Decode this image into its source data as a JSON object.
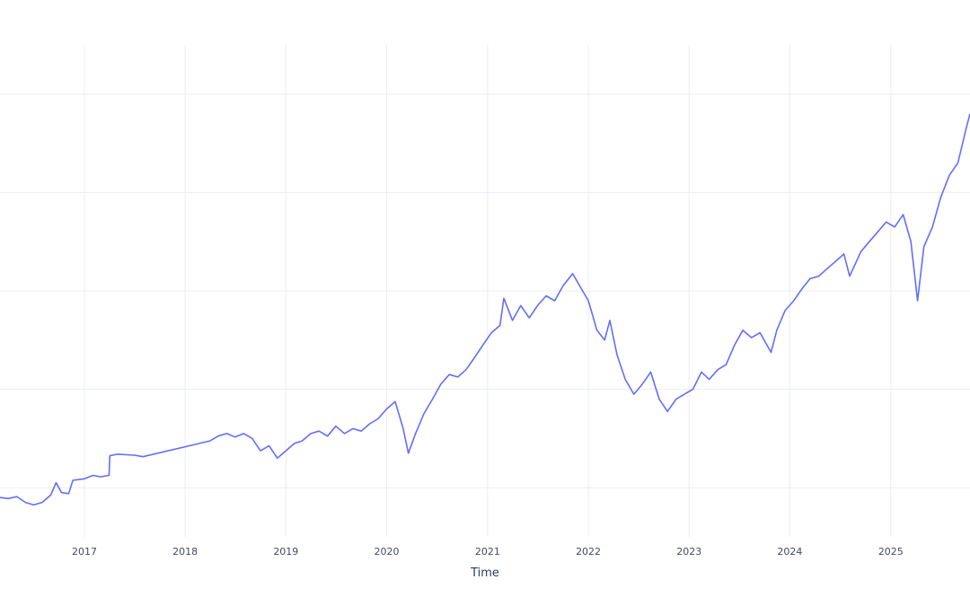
{
  "chart_data": {
    "type": "line",
    "title": "",
    "xlabel": "Time",
    "ylabel": "",
    "xlim": [
      "2016-03-01",
      "2025-10-15"
    ],
    "ylim": [
      0,
      100
    ],
    "x_ticks": [
      "2017",
      "2018",
      "2019",
      "2020",
      "2021",
      "2022",
      "2023",
      "2024",
      "2025"
    ],
    "y_grid_values": [
      10,
      30,
      50,
      70,
      90
    ],
    "grid": true,
    "legend": "none",
    "line_color": "#636efa",
    "series": [
      {
        "points": [
          [
            "2016-03-01",
            8.0
          ],
          [
            "2016-04-01",
            7.8
          ],
          [
            "2016-05-01",
            8.2
          ],
          [
            "2016-06-01",
            7.0
          ],
          [
            "2016-07-01",
            6.5
          ],
          [
            "2016-08-01",
            7.0
          ],
          [
            "2016-09-01",
            8.5
          ],
          [
            "2016-09-20",
            11.0
          ],
          [
            "2016-10-10",
            9.0
          ],
          [
            "2016-11-05",
            8.8
          ],
          [
            "2016-11-20",
            11.5
          ],
          [
            "2017-01-01",
            11.8
          ],
          [
            "2017-02-01",
            12.5
          ],
          [
            "2017-03-01",
            12.2
          ],
          [
            "2017-03-31",
            12.5
          ],
          [
            "2017-04-03",
            16.5
          ],
          [
            "2017-05-01",
            16.8
          ],
          [
            "2017-06-01",
            16.7
          ],
          [
            "2017-07-01",
            16.6
          ],
          [
            "2017-08-01",
            16.3
          ],
          [
            "2018-04-01",
            19.5
          ],
          [
            "2018-05-01",
            20.5
          ],
          [
            "2018-06-01",
            21.0
          ],
          [
            "2018-07-01",
            20.3
          ],
          [
            "2018-08-01",
            21.0
          ],
          [
            "2018-09-01",
            20.0
          ],
          [
            "2018-10-01",
            17.5
          ],
          [
            "2018-11-01",
            18.5
          ],
          [
            "2018-12-01",
            16.0
          ],
          [
            "2019-01-01",
            17.5
          ],
          [
            "2019-02-01",
            19.0
          ],
          [
            "2019-03-01",
            19.5
          ],
          [
            "2019-04-01",
            21.0
          ],
          [
            "2019-05-01",
            21.5
          ],
          [
            "2019-06-01",
            20.5
          ],
          [
            "2019-07-01",
            22.5
          ],
          [
            "2019-08-01",
            21.0
          ],
          [
            "2019-09-01",
            22.0
          ],
          [
            "2019-10-01",
            21.5
          ],
          [
            "2019-11-01",
            23.0
          ],
          [
            "2019-12-01",
            24.0
          ],
          [
            "2020-01-01",
            26.0
          ],
          [
            "2020-02-01",
            27.5
          ],
          [
            "2020-03-01",
            22.0
          ],
          [
            "2020-03-20",
            17.0
          ],
          [
            "2020-04-15",
            21.0
          ],
          [
            "2020-05-15",
            25.0
          ],
          [
            "2020-06-15",
            28.0
          ],
          [
            "2020-07-15",
            31.0
          ],
          [
            "2020-08-15",
            33.0
          ],
          [
            "2020-09-15",
            32.5
          ],
          [
            "2020-10-15",
            34.0
          ],
          [
            "2020-11-15",
            36.5
          ],
          [
            "2020-12-15",
            39.0
          ],
          [
            "2021-01-15",
            41.5
          ],
          [
            "2021-02-15",
            43.0
          ],
          [
            "2021-03-01",
            48.5
          ],
          [
            "2021-04-01",
            44.0
          ],
          [
            "2021-05-01",
            47.0
          ],
          [
            "2021-06-01",
            44.5
          ],
          [
            "2021-07-01",
            47.0
          ],
          [
            "2021-08-01",
            49.0
          ],
          [
            "2021-09-01",
            48.0
          ],
          [
            "2021-10-01",
            51.0
          ],
          [
            "2021-11-05",
            53.5
          ],
          [
            "2021-12-01",
            51.0
          ],
          [
            "2022-01-01",
            48.0
          ],
          [
            "2022-02-01",
            42.0
          ],
          [
            "2022-03-01",
            40.0
          ],
          [
            "2022-03-20",
            44.0
          ],
          [
            "2022-04-15",
            37.0
          ],
          [
            "2022-05-15",
            32.0
          ],
          [
            "2022-06-15",
            29.0
          ],
          [
            "2022-07-15",
            31.0
          ],
          [
            "2022-08-15",
            33.5
          ],
          [
            "2022-09-15",
            28.0
          ],
          [
            "2022-10-15",
            25.5
          ],
          [
            "2022-11-15",
            28.0
          ],
          [
            "2022-12-15",
            29.0
          ],
          [
            "2023-01-15",
            30.0
          ],
          [
            "2023-02-15",
            33.5
          ],
          [
            "2023-03-15",
            32.0
          ],
          [
            "2023-04-15",
            34.0
          ],
          [
            "2023-05-15",
            35.0
          ],
          [
            "2023-06-15",
            39.0
          ],
          [
            "2023-07-15",
            42.0
          ],
          [
            "2023-08-15",
            40.5
          ],
          [
            "2023-09-15",
            41.5
          ],
          [
            "2023-10-25",
            37.5
          ],
          [
            "2023-11-15",
            42.0
          ],
          [
            "2023-12-15",
            46.0
          ],
          [
            "2024-01-15",
            48.0
          ],
          [
            "2024-02-15",
            50.5
          ],
          [
            "2024-03-15",
            52.5
          ],
          [
            "2024-04-15",
            53.0
          ],
          [
            "2024-05-15",
            54.5
          ],
          [
            "2024-06-15",
            56.0
          ],
          [
            "2024-07-15",
            57.5
          ],
          [
            "2024-08-05",
            53.0
          ],
          [
            "2024-09-15",
            58.0
          ],
          [
            "2024-10-15",
            60.0
          ],
          [
            "2024-11-15",
            62.0
          ],
          [
            "2024-12-15",
            64.0
          ],
          [
            "2025-01-15",
            63.0
          ],
          [
            "2025-02-15",
            65.5
          ],
          [
            "2025-03-15",
            60.0
          ],
          [
            "2025-04-08",
            48.0
          ],
          [
            "2025-05-01",
            59.0
          ],
          [
            "2025-06-01",
            63.0
          ],
          [
            "2025-07-01",
            69.0
          ],
          [
            "2025-08-01",
            73.5
          ],
          [
            "2025-09-01",
            76.0
          ],
          [
            "2025-10-01",
            83.0
          ],
          [
            "2025-10-15",
            86.0
          ]
        ]
      }
    ]
  }
}
